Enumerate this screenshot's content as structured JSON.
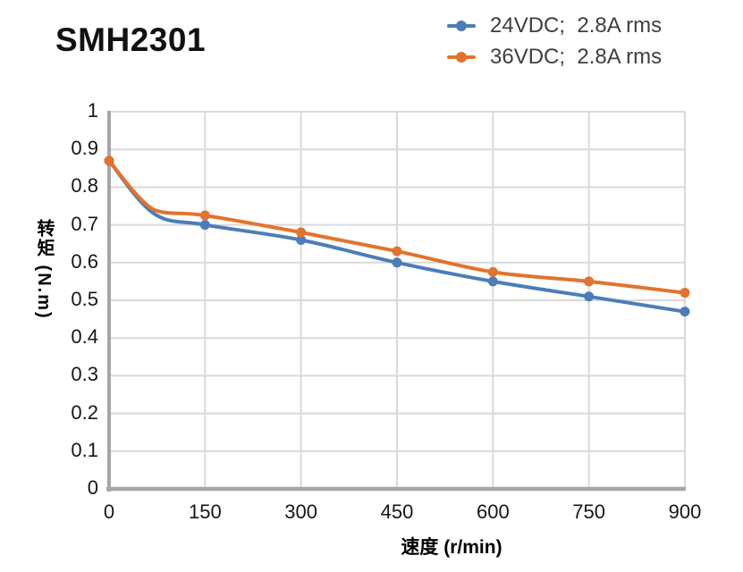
{
  "header": {
    "title": "SMH2301"
  },
  "legend": {
    "items": [
      {
        "label": "24VDC;  2.8A rms",
        "color": "#4C7DB9"
      },
      {
        "label": "36VDC;  2.8A rms",
        "color": "#E2732E"
      }
    ]
  },
  "chart_data": {
    "type": "line",
    "title": "SMH2301",
    "xlabel": "速度 (r/min)",
    "ylabel": "转矩 (N.m)",
    "xlim": [
      0,
      900
    ],
    "ylim": [
      0,
      1
    ],
    "x_ticks": [
      0,
      150,
      300,
      450,
      600,
      750,
      900
    ],
    "y_ticks": [
      0,
      0.1,
      0.2,
      0.3,
      0.4,
      0.5,
      0.6,
      0.7,
      0.8,
      0.9,
      1
    ],
    "grid": true,
    "legend_position": "top-right",
    "x": [
      0,
      150,
      300,
      450,
      600,
      750,
      900
    ],
    "series": [
      {
        "name": "24VDC;  2.8A rms",
        "color": "#4C7DB9",
        "values": [
          0.87,
          0.7,
          0.66,
          0.6,
          0.55,
          0.51,
          0.47
        ],
        "draw_points": [
          [
            0,
            0.87
          ],
          [
            70,
            0.73
          ],
          [
            150,
            0.7
          ],
          [
            300,
            0.66
          ],
          [
            450,
            0.6
          ],
          [
            600,
            0.55
          ],
          [
            750,
            0.51
          ],
          [
            900,
            0.47
          ]
        ]
      },
      {
        "name": "36VDC;  2.8A rms",
        "color": "#E2732E",
        "values": [
          0.87,
          0.725,
          0.68,
          0.63,
          0.575,
          0.55,
          0.52
        ],
        "draw_points": [
          [
            0,
            0.87
          ],
          [
            70,
            0.74
          ],
          [
            150,
            0.725
          ],
          [
            300,
            0.68
          ],
          [
            450,
            0.63
          ],
          [
            600,
            0.575
          ],
          [
            750,
            0.55
          ],
          [
            900,
            0.52
          ]
        ]
      }
    ],
    "colors": {
      "gridline": "#D9D9D9",
      "axis": "#A6A6A6",
      "tick_text": "#161616",
      "legend_text": "#3F3F3F"
    }
  }
}
